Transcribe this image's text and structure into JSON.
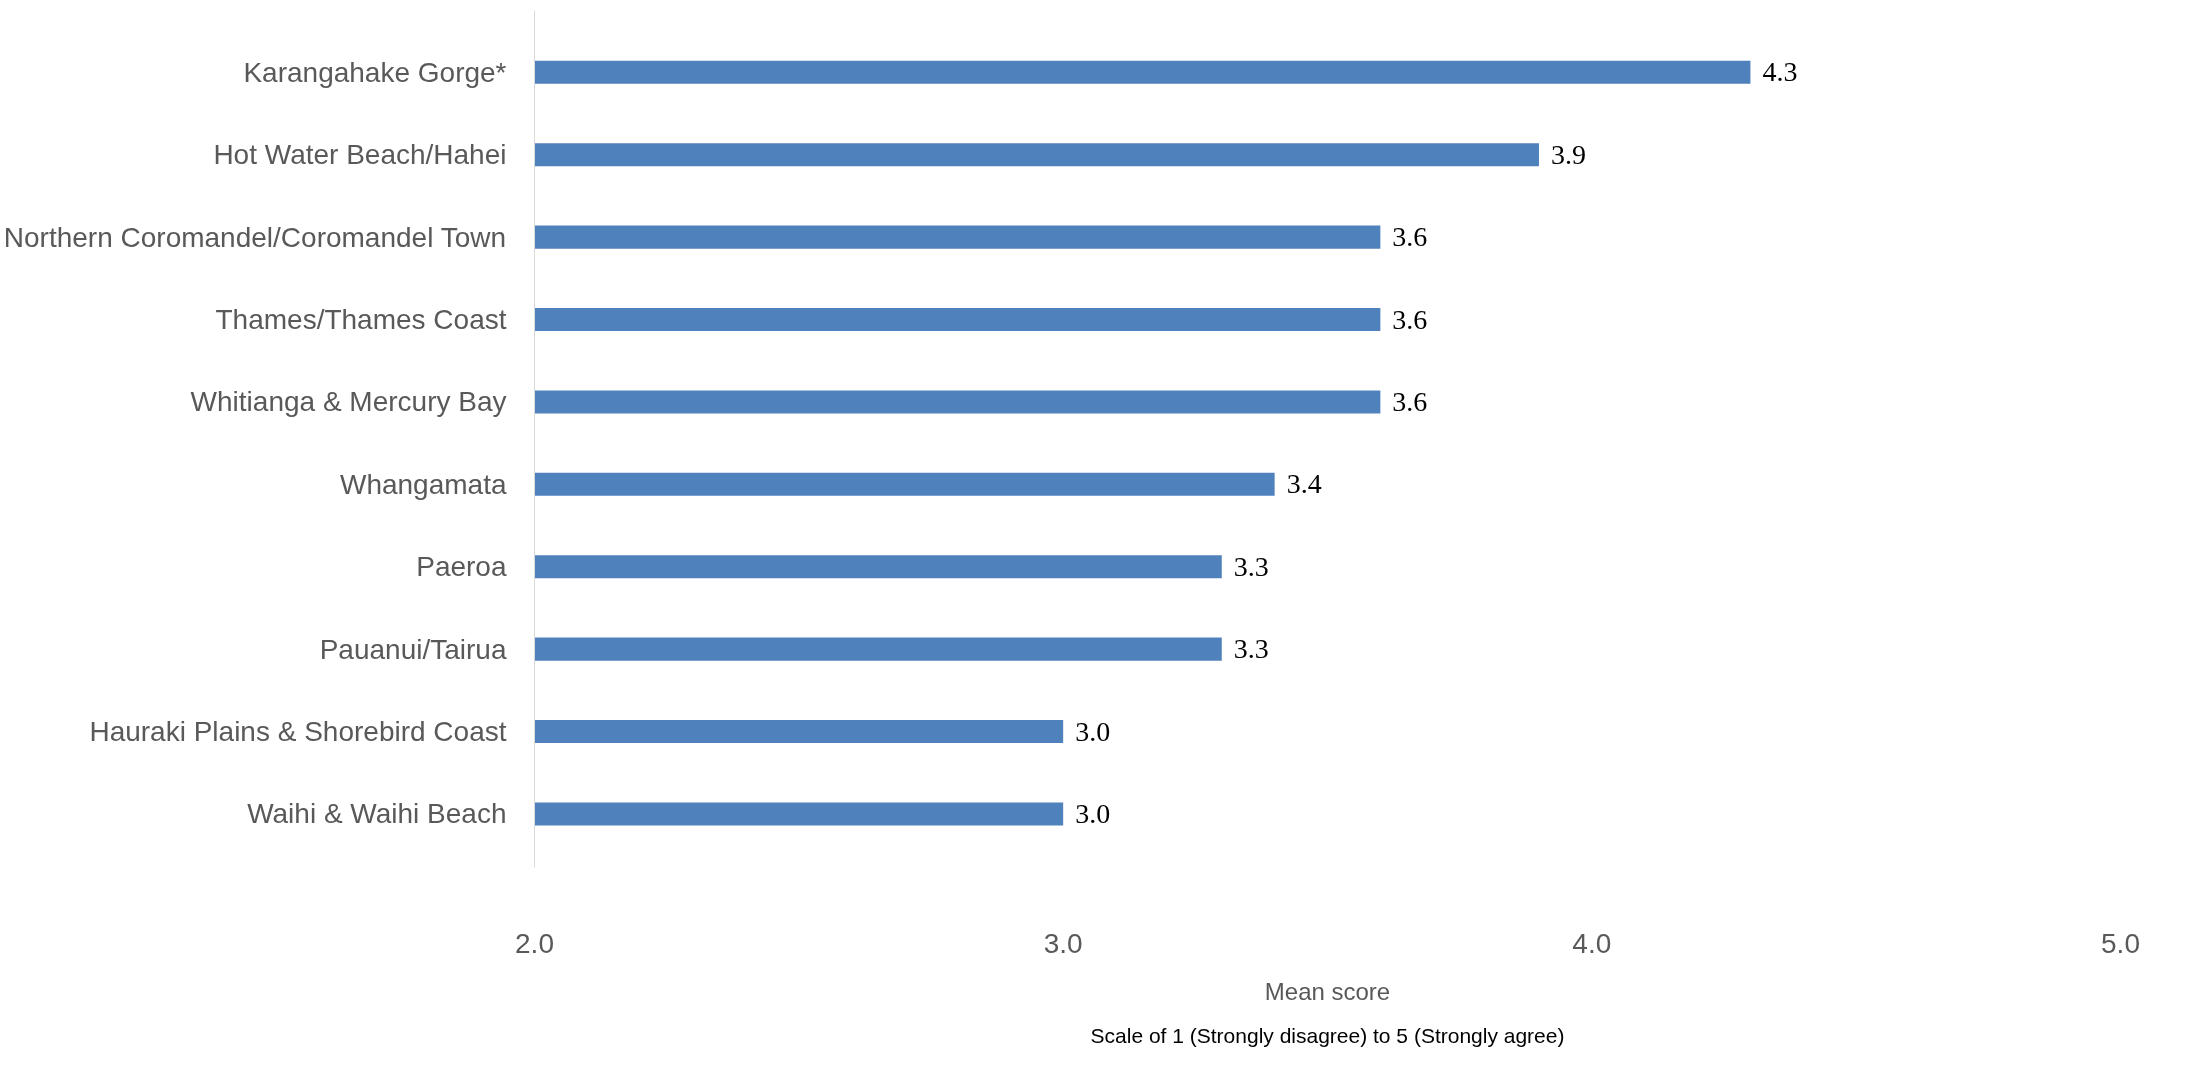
{
  "chart_data": {
    "type": "bar",
    "orientation": "horizontal",
    "categories": [
      "Karangahake Gorge*",
      "Hot Water Beach/Hahei",
      "Northern Coromandel/Coromandel Town",
      "Thames/Thames Coast",
      "Whitianga & Mercury Bay",
      "Whangamata",
      "Paeroa",
      "Pauanui/Tairua",
      "Hauraki Plains & Shorebird Coast",
      "Waihi & Waihi Beach"
    ],
    "values": [
      4.3,
      3.9,
      3.6,
      3.6,
      3.6,
      3.4,
      3.3,
      3.3,
      3.0,
      3.0
    ],
    "value_labels": [
      "4.3",
      "3.9",
      "3.6",
      "3.6",
      "3.6",
      "3.4",
      "3.3",
      "3.3",
      "3.0",
      "3.0"
    ],
    "color": "#4f81bd",
    "xlim": [
      2,
      5
    ],
    "xticks": [
      {
        "value": 2,
        "label": "2.0"
      },
      {
        "value": 3,
        "label": "3.0"
      },
      {
        "value": 4,
        "label": "4.0"
      },
      {
        "value": 5,
        "label": "5.0"
      }
    ],
    "xlabel": "Mean score",
    "annotations": [
      "Scale of 1 (Strongly disagree) to 5 (Strongly agree)"
    ]
  }
}
